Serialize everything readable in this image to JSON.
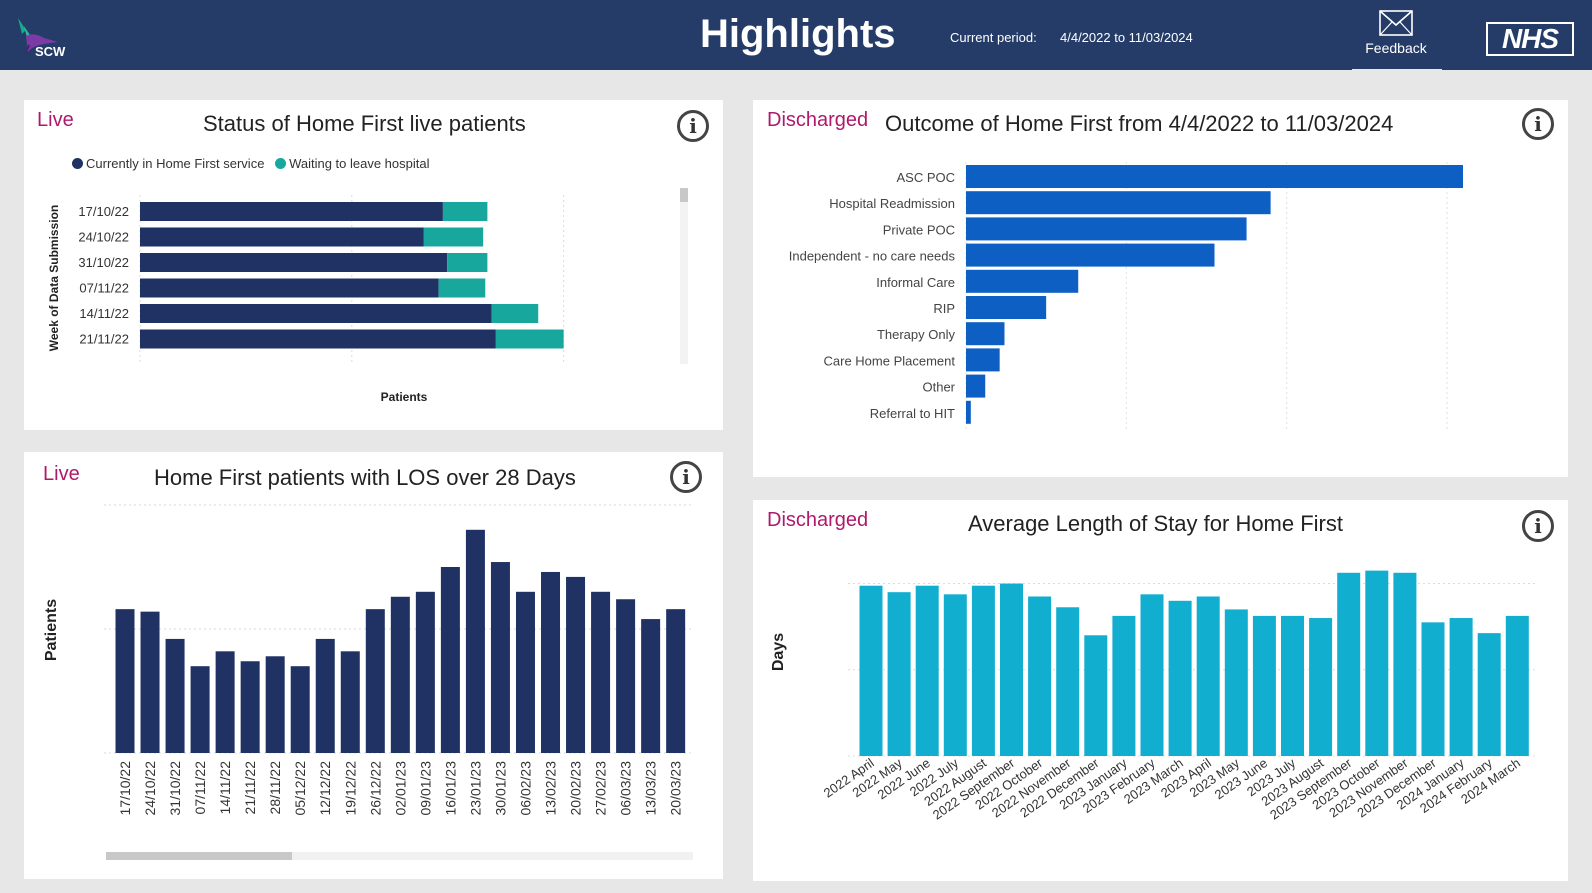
{
  "header": {
    "logo_text": "SCW",
    "title": "Highlights",
    "period_label": "Current period:",
    "period_value": "4/4/2022 to 11/03/2024",
    "feedback_label": "Feedback",
    "nhs_logo": "NHS"
  },
  "colors": {
    "navy": "#1f3263",
    "teal": "#17a79c",
    "blue": "#0e5fc4",
    "cyan": "#11aed0",
    "magenta": "#b0196b",
    "header": "#253c68"
  },
  "panels": {
    "live_status": {
      "tag": "Live",
      "title": "Status of Home First live patients",
      "icon": "info-icon"
    },
    "outcome": {
      "tag": "Discharged",
      "title": "Outcome of Home First from 4/4/2022 to 11/03/2024",
      "icon": "info-icon"
    },
    "los": {
      "tag": "Live",
      "title": "Home First patients with LOS over 28 Days",
      "icon": "info-icon"
    },
    "avg_los": {
      "tag": "Discharged",
      "title": "Average Length of Stay for Home First",
      "icon": "info-icon"
    }
  },
  "chart_data": [
    {
      "type": "bar",
      "orientation": "horizontal",
      "stacked": true,
      "title": "Status of Home First live patients",
      "ylabel": "Week of Data Submission",
      "xlabel": "Patients",
      "categories": [
        "17/10/22",
        "24/10/22",
        "31/10/22",
        "07/11/22",
        "14/11/22",
        "21/11/22"
      ],
      "series": [
        {
          "name": "Currently in Home First service",
          "values": [
            143,
            134,
            145,
            141,
            166,
            168
          ]
        },
        {
          "name": "Waiting to leave hospital",
          "values": [
            21,
            28,
            19,
            22,
            22,
            32
          ]
        }
      ],
      "xlim": [
        0,
        220
      ],
      "legend": "top-left"
    },
    {
      "type": "bar",
      "orientation": "horizontal",
      "title": "Outcome of Home First from 4/4/2022 to 11/03/2024",
      "categories": [
        "ASC POC",
        "Hospital Readmission",
        "Private POC",
        "Independent - no care needs",
        "Informal Care",
        "RIP",
        "Therapy Only",
        "Care Home Placement",
        "Other",
        "Referral to HIT"
      ],
      "values": [
        31,
        19,
        17.5,
        15.5,
        7,
        5,
        2.4,
        2.1,
        1.2,
        0.3
      ],
      "xlim": [
        0,
        31
      ]
    },
    {
      "type": "bar",
      "title": "Home First patients with LOS over 28 Days",
      "ylabel": "Patients",
      "categories": [
        "17/10/22",
        "24/10/22",
        "31/10/22",
        "07/11/22",
        "14/11/22",
        "21/11/22",
        "28/11/22",
        "05/12/22",
        "12/12/22",
        "19/12/22",
        "26/12/22",
        "02/01/23",
        "09/01/23",
        "16/01/23",
        "23/01/23",
        "30/01/23",
        "06/02/23",
        "13/02/23",
        "20/02/23",
        "27/02/23",
        "06/03/23",
        "13/03/23",
        "20/03/23"
      ],
      "values": [
        58,
        57,
        46,
        35,
        41,
        37,
        39,
        35,
        46,
        41,
        58,
        63,
        65,
        75,
        90,
        77,
        65,
        73,
        71,
        65,
        62,
        54,
        58
      ],
      "ylim": [
        0,
        100
      ]
    },
    {
      "type": "bar",
      "title": "Average Length of Stay for Home First",
      "ylabel": "Days",
      "categories": [
        "2022 April",
        "2022 May",
        "2022 June",
        "2022 July",
        "2022 August",
        "2022 September",
        "2022 October",
        "2022 November",
        "2022 December",
        "2023 January",
        "2023 February",
        "2023 March",
        "2023 April",
        "2023 May",
        "2023 June",
        "2023 July",
        "2023 August",
        "2023 September",
        "2023 October",
        "2023 November",
        "2023 December",
        "2024 January",
        "2024 February",
        "2024 March"
      ],
      "values": [
        39.5,
        38,
        39.5,
        37.5,
        39.5,
        40,
        37,
        34.5,
        28,
        32.5,
        37.5,
        36,
        37,
        34,
        32.5,
        32.5,
        32,
        42.5,
        43,
        42.5,
        31,
        32,
        28.5,
        32.5
      ],
      "ylim": [
        0,
        45
      ]
    }
  ]
}
